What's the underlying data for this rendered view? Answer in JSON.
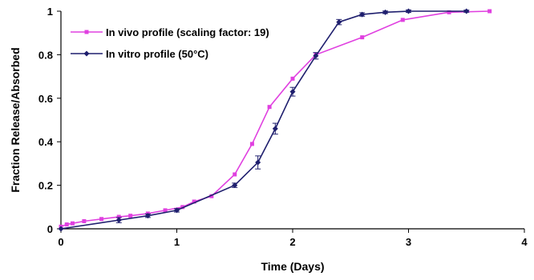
{
  "chart_data": {
    "type": "line",
    "title": "",
    "xlabel": "Time (Days)",
    "ylabel": "Fraction Release/Absorbed",
    "xlim": [
      0,
      4
    ],
    "ylim": [
      0,
      1
    ],
    "x_ticks": [
      "0",
      "1",
      "2",
      "3",
      "4"
    ],
    "y_ticks": [
      "0",
      "0.2",
      "0.4",
      "0.6",
      "0.8",
      "1"
    ],
    "grid": false,
    "legend_position": "top-left",
    "series": [
      {
        "name": "In vivo profile (scaling factor: 19)",
        "color": "#e040e0",
        "marker": "square",
        "x": [
          0.0,
          0.05,
          0.1,
          0.2,
          0.35,
          0.5,
          0.6,
          0.75,
          0.9,
          1.05,
          1.15,
          1.3,
          1.5,
          1.65,
          1.8,
          2.0,
          2.2,
          2.6,
          2.95,
          3.35,
          3.7
        ],
        "y": [
          0.01,
          0.02,
          0.025,
          0.035,
          0.045,
          0.055,
          0.06,
          0.07,
          0.085,
          0.1,
          0.125,
          0.15,
          0.25,
          0.39,
          0.56,
          0.69,
          0.8,
          0.88,
          0.96,
          0.995,
          1.0
        ],
        "errors": []
      },
      {
        "name": "In vitro profile (50°C)",
        "color": "#1f1f6e",
        "marker": "diamond",
        "x": [
          0.0,
          0.5,
          0.75,
          1.0,
          1.5,
          1.7,
          1.85,
          2.0,
          2.2,
          2.4,
          2.6,
          2.8,
          3.0,
          3.5
        ],
        "y": [
          0.0,
          0.04,
          0.06,
          0.085,
          0.2,
          0.305,
          0.46,
          0.63,
          0.795,
          0.95,
          0.985,
          0.995,
          1.0,
          1.0
        ],
        "errors": [
          0,
          0.012,
          0.008,
          0.008,
          0.01,
          0.03,
          0.025,
          0.02,
          0.015,
          0.012,
          0.008,
          0.006,
          0.006,
          0.005
        ]
      }
    ]
  }
}
